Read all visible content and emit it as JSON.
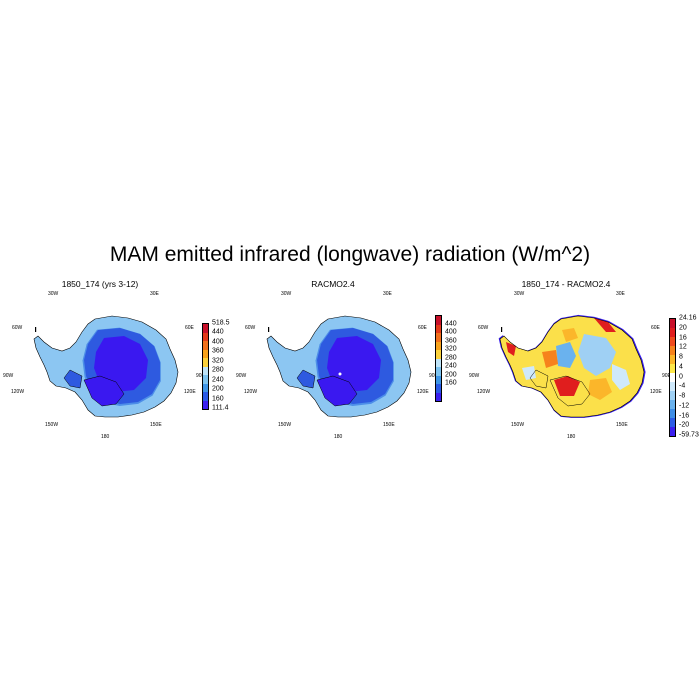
{
  "title": "MAM emitted infrared (longwave) radiation (W/m^2)",
  "lon_labels": {
    "w30": "30W",
    "e30": "30E",
    "w60": "60W",
    "e60": "60E",
    "w90": "90W",
    "e90": "90E",
    "w120": "120W",
    "e120": "120E",
    "w150": "150W",
    "e150": "150E",
    "s180": "180"
  },
  "panels": [
    {
      "title": "1850_174 (yrs 3-12)",
      "colorbar": {
        "labels": [
          "518.5",
          "440",
          "400",
          "360",
          "320",
          "280",
          "240",
          "200",
          "160",
          "111.4"
        ],
        "colors": [
          "#c8102a",
          "#e43a1a",
          "#f2701c",
          "#f8a31c",
          "#fbd23d",
          "#bfe4f8",
          "#7dc3ef",
          "#3e95e6",
          "#2a5ae6",
          "#3a1fef"
        ]
      },
      "fill_colors": [
        "#3a18f0",
        "#2e5ae0",
        "#4d8ee8",
        "#8cc6f2"
      ]
    },
    {
      "title": "RACMO2.4",
      "colorbar": {
        "labels": [
          "440",
          "400",
          "360",
          "320",
          "280",
          "240",
          "200",
          "160"
        ],
        "colors": [
          "#c8102a",
          "#e43a1a",
          "#f2701c",
          "#f8a31c",
          "#fbd23d",
          "#bfe4f8",
          "#7dc3ef",
          "#3e95e6",
          "#2a5ae6",
          "#3a1fef"
        ]
      },
      "fill_colors": [
        "#3a18f0",
        "#2e5ae0",
        "#4d8ee8",
        "#8cc6f2"
      ]
    },
    {
      "title": "1850_174 - RACMO2.4",
      "colorbar": {
        "labels": [
          "24.16",
          "20",
          "16",
          "12",
          "8",
          "4",
          "0",
          "-4",
          "-8",
          "-12",
          "-16",
          "-20",
          "-59.73"
        ],
        "colors": [
          "#c8102a",
          "#e01e1e",
          "#ef4a1c",
          "#f6821c",
          "#fbb62a",
          "#fde84a",
          "#ffffff",
          "#cfe9fb",
          "#9fd0f4",
          "#6ab2ee",
          "#3f8ee6",
          "#2c5ce6",
          "#3a1fef"
        ]
      },
      "fill_colors": [
        "#fbe04a",
        "#fbb62a",
        "#f6821c",
        "#cfe9fb",
        "#9fd0f4",
        "#6ab2ee",
        "#ffffff",
        "#e01e1e",
        "#3a1fef"
      ]
    }
  ]
}
